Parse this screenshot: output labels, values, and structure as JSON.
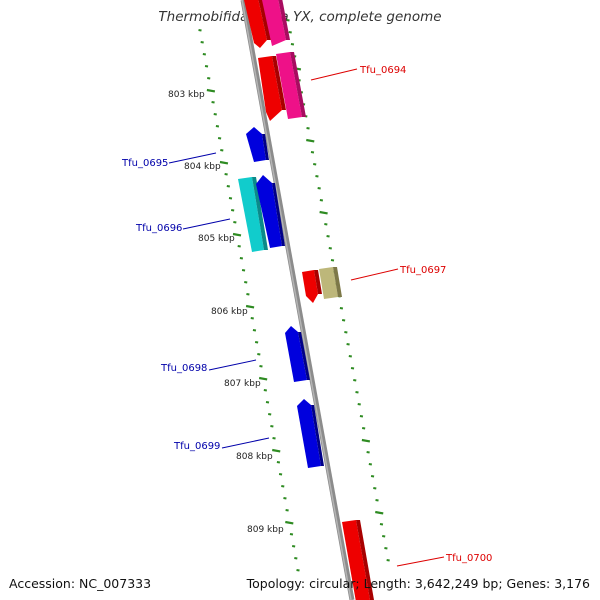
{
  "title": "Thermobifida fusca YX, complete genome",
  "footer": {
    "accession": "Accession: NC_007333",
    "summary": "Topology: circular; Length: 3,642,249 bp; Genes: 3,176"
  },
  "colors": {
    "backbone": "#8c8c8c",
    "tick": "#2e8b22",
    "forward_label": "#dd0000",
    "reverse_label": "#0000aa",
    "red": "#ee0000",
    "magenta": "#ee1188",
    "blue": "#0000dd",
    "cyan": "#11cccc",
    "khaki": "#bdb77a"
  },
  "scale_labels": [
    "803 kbp",
    "804 kbp",
    "805 kbp",
    "806 kbp",
    "807 kbp",
    "808 kbp",
    "809 kbp"
  ],
  "gene_labels": [
    {
      "name": "Tfu_0694",
      "strand": "forward"
    },
    {
      "name": "Tfu_0695",
      "strand": "reverse"
    },
    {
      "name": "Tfu_0696",
      "strand": "reverse"
    },
    {
      "name": "Tfu_0697",
      "strand": "forward"
    },
    {
      "name": "Tfu_0698",
      "strand": "reverse"
    },
    {
      "name": "Tfu_0699",
      "strand": "reverse"
    },
    {
      "name": "Tfu_0700",
      "strand": "forward"
    }
  ]
}
